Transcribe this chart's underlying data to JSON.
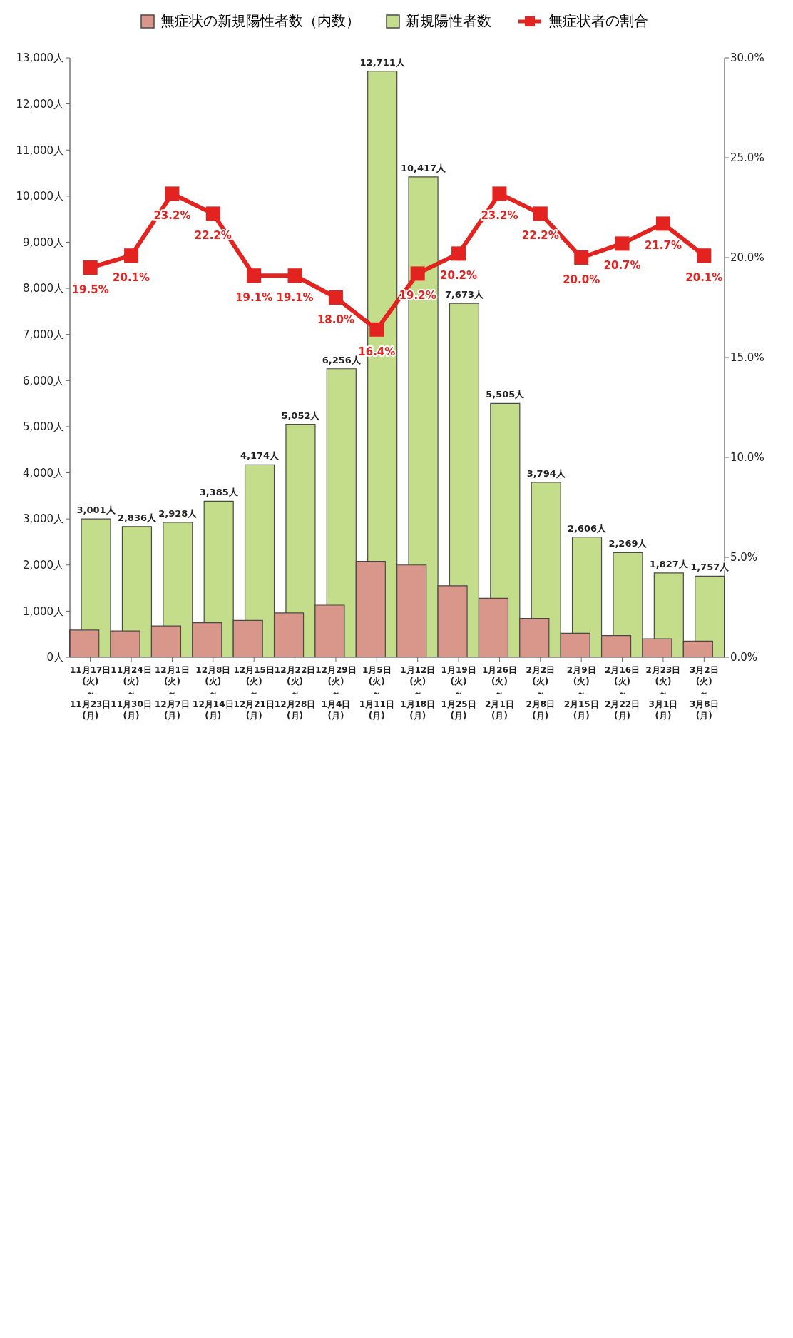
{
  "chart_data": {
    "type": "bar",
    "categories": [
      "11月17日 (火) ～ 11月23日 (月)",
      "11月24日 (火) ～ 11月30日 (月)",
      "12月1日 (火) ～ 12月7日 (月)",
      "12月8日 (火) ～ 12月14日 (月)",
      "12月15日 (火) ～ 12月21日 (月)",
      "12月22日 (火) ～ 12月28日 (月)",
      "12月29日 (火) ～ 1月4日 (月)",
      "1月5日 (火) ～ 1月11日 (月)",
      "1月12日 (火) ～ 1月18日 (月)",
      "1月19日 (火) ～ 1月25日 (月)",
      "1月26日 (火) ～ 2月1日 (月)",
      "2月2日 (火) ～ 2月8日 (月)",
      "2月9日 (火) ～ 2月15日 (月)",
      "2月16日 (火) ～ 2月22日 (月)",
      "2月23日 (火) ～ 3月1日 (月)",
      "3月2日 (火) ～ 3月8日 (月)"
    ],
    "series": [
      {
        "name": "無症状の新規陽性者数（内数）",
        "color": "#d9968a",
        "values": [
          590,
          570,
          680,
          750,
          800,
          960,
          1130,
          2080,
          2000,
          1550,
          1280,
          840,
          520,
          470,
          400,
          350
        ]
      },
      {
        "name": "新規陽性者数",
        "color": "#c3dd8a",
        "values": [
          3001,
          2836,
          2928,
          3385,
          4174,
          5052,
          6256,
          12711,
          10417,
          7673,
          5505,
          3794,
          2606,
          2269,
          1827,
          1757
        ],
        "value_labels": [
          "3,001人",
          "2,836人",
          "2,928人",
          "3,385人",
          "4,174人",
          "5,052人",
          "6,256人",
          "12,711人",
          "10,417人",
          "7,673人",
          "5,505人",
          "3,794人",
          "2,606人",
          "2,269人",
          "1,827人",
          "1,757人"
        ]
      },
      {
        "name": "無症状者の割合",
        "type": "line",
        "axis": "y2",
        "color": "#e3231f",
        "marker": "square",
        "line_style": "solid",
        "values": [
          19.5,
          20.1,
          23.2,
          22.2,
          19.1,
          19.1,
          18.0,
          16.4,
          19.2,
          20.2,
          23.2,
          22.2,
          20.0,
          20.7,
          21.7,
          20.1
        ],
        "value_labels": [
          "19.5%",
          "20.1%",
          "23.2%",
          "22.2%",
          "19.1%",
          "19.1%",
          "18.0%",
          "16.4%",
          "19.2%",
          "20.2%",
          "23.2%",
          "22.2%",
          "20.0%",
          "20.7%",
          "21.7%",
          "20.1%"
        ]
      }
    ],
    "ylim": [
      0,
      13000
    ],
    "yticks": [
      {
        "value": 0,
        "label": "0人"
      },
      {
        "value": 1000,
        "label": "1,000人"
      },
      {
        "value": 2000,
        "label": "2,000人"
      },
      {
        "value": 3000,
        "label": "3,000人"
      },
      {
        "value": 4000,
        "label": "4,000人"
      },
      {
        "value": 5000,
        "label": "5,000人"
      },
      {
        "value": 6000,
        "label": "6,000人"
      },
      {
        "value": 7000,
        "label": "7,000人"
      },
      {
        "value": 8000,
        "label": "8,000人"
      },
      {
        "value": 9000,
        "label": "9,000人"
      },
      {
        "value": 10000,
        "label": "10,000人"
      },
      {
        "value": 11000,
        "label": "11,000人"
      },
      {
        "value": 12000,
        "label": "12,000人"
      },
      {
        "value": 13000,
        "label": "13,000人"
      }
    ],
    "y2lim": [
      0,
      30
    ],
    "y2ticks": [
      {
        "value": 0,
        "label": "0.0%"
      },
      {
        "value": 5,
        "label": "5.0%"
      },
      {
        "value": 10,
        "label": "10.0%"
      },
      {
        "value": 15,
        "label": "15.0%"
      },
      {
        "value": 20,
        "label": "20.0%"
      },
      {
        "value": 25,
        "label": "25.0%"
      },
      {
        "value": 30,
        "label": "30.0%"
      }
    ],
    "legend": "top",
    "grid": false
  }
}
